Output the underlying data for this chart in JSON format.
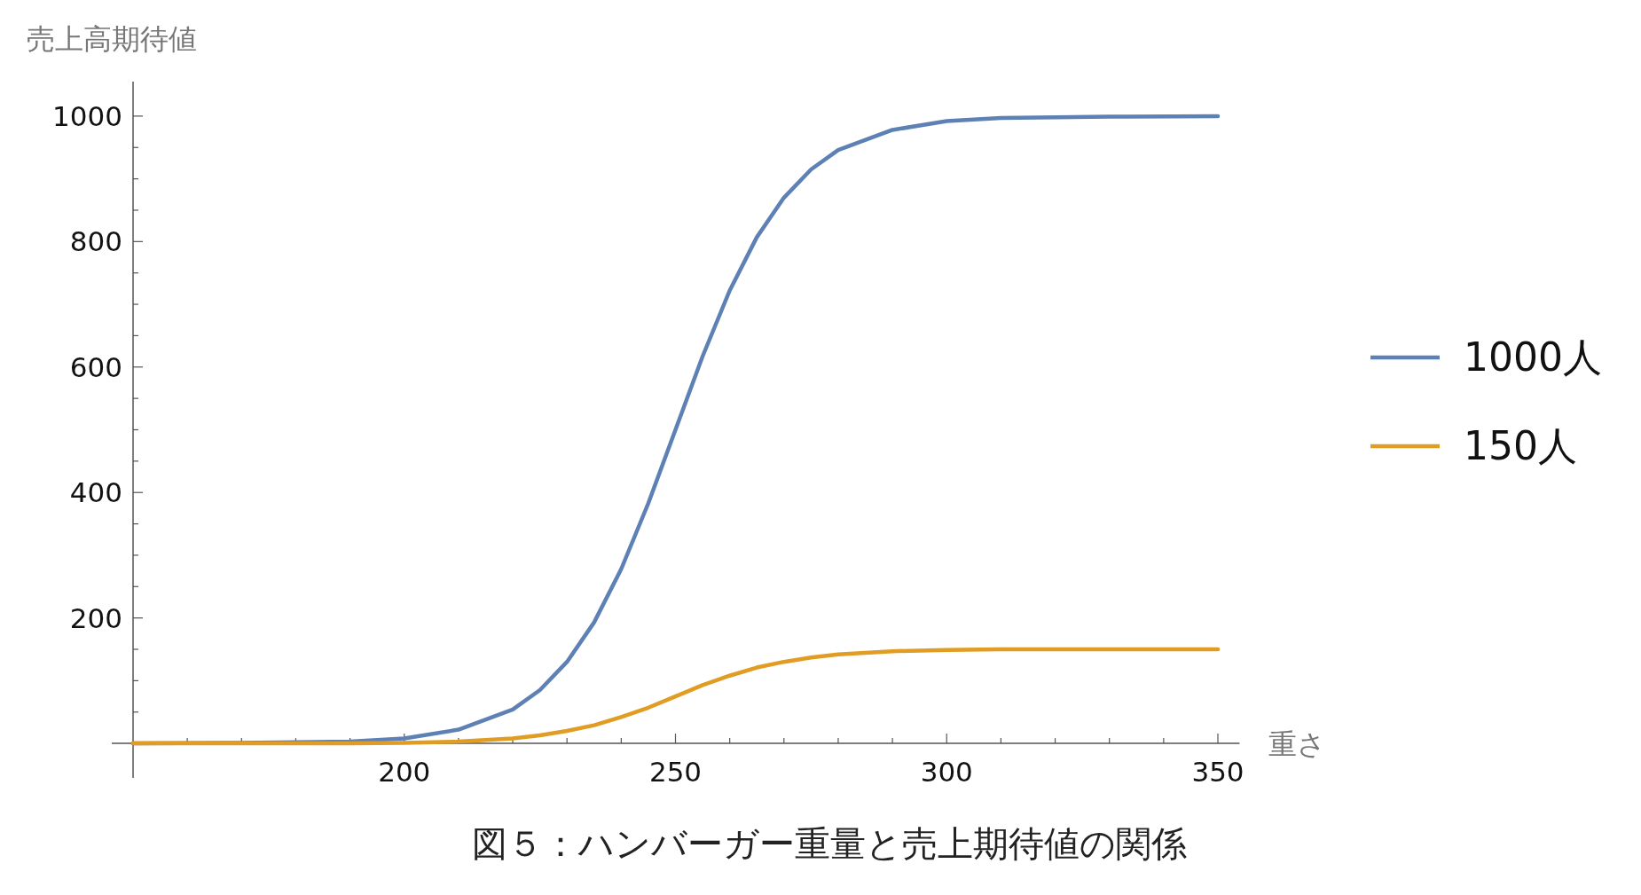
{
  "chart_data": {
    "type": "line",
    "ylabel": "売上高期待値",
    "xlabel": "重さ",
    "annotations": [
      "図５：ハンバーガー重量と売上期待値の関係"
    ],
    "x": [
      150,
      170,
      190,
      200,
      210,
      220,
      225,
      230,
      235,
      240,
      245,
      250,
      255,
      260,
      265,
      270,
      275,
      280,
      290,
      300,
      310,
      330,
      350
    ],
    "series": [
      {
        "name": "1000人",
        "color": "#5e81b5",
        "values": [
          0,
          1,
          3,
          8,
          22,
          54,
          85,
          130,
          193,
          278,
          383,
          500,
          617,
          722,
          807,
          870,
          915,
          946,
          978,
          992,
          997,
          999,
          1000
        ]
      },
      {
        "name": "150人",
        "color": "#e19c24",
        "values": [
          0,
          0,
          0,
          1,
          3,
          8,
          13,
          20,
          29,
          42,
          57,
          75,
          93,
          108,
          121,
          130,
          137,
          142,
          147,
          149,
          150,
          150,
          150
        ]
      }
    ],
    "xlim": [
      150,
      354
    ],
    "ylim": [
      -55,
      1055
    ],
    "xticks": [
      {
        "value": 160,
        "label": null
      },
      {
        "value": 170,
        "label": null
      },
      {
        "value": 180,
        "label": null
      },
      {
        "value": 190,
        "label": null
      },
      200,
      {
        "value": 210,
        "label": null
      },
      {
        "value": 220,
        "label": null
      },
      {
        "value": 230,
        "label": null
      },
      {
        "value": 240,
        "label": null
      },
      250,
      {
        "value": 260,
        "label": null
      },
      {
        "value": 270,
        "label": null
      },
      {
        "value": 280,
        "label": null
      },
      {
        "value": 290,
        "label": null
      },
      300,
      {
        "value": 310,
        "label": null
      },
      {
        "value": 320,
        "label": null
      },
      {
        "value": 330,
        "label": null
      },
      {
        "value": 340,
        "label": null
      },
      350
    ],
    "yticks": [
      {
        "value": 50,
        "label": null
      },
      {
        "value": 100,
        "label": null
      },
      {
        "value": 150,
        "label": null
      },
      200,
      {
        "value": 250,
        "label": null
      },
      {
        "value": 300,
        "label": null
      },
      {
        "value": 350,
        "label": null
      },
      400,
      {
        "value": 450,
        "label": null
      },
      {
        "value": 500,
        "label": null
      },
      {
        "value": 550,
        "label": null
      },
      600,
      {
        "value": 650,
        "label": null
      },
      {
        "value": 700,
        "label": null
      },
      {
        "value": 750,
        "label": null
      },
      800,
      {
        "value": 850,
        "label": null
      },
      {
        "value": 900,
        "label": null
      },
      {
        "value": 950,
        "label": null
      },
      1000
    ],
    "legend": "right",
    "grid": false
  }
}
